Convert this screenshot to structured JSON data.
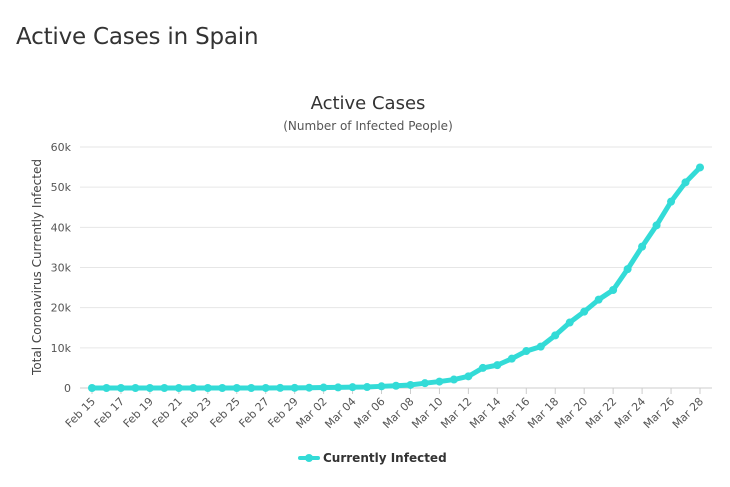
{
  "page": {
    "heading": "Active Cases in Spain"
  },
  "chart_data": {
    "type": "line",
    "title": "Active Cases",
    "subtitle": "(Number of Infected People)",
    "xlabel": "",
    "ylabel": "Total Coronavirus Currently Infected",
    "ylim": [
      0,
      60000
    ],
    "yticks": [
      0,
      10000,
      20000,
      30000,
      40000,
      50000,
      60000
    ],
    "ytick_labels": [
      "0",
      "10k",
      "20k",
      "30k",
      "40k",
      "50k",
      "60k"
    ],
    "xtick_labels": [
      "Feb 15",
      "Feb 17",
      "Feb 19",
      "Feb 21",
      "Feb 23",
      "Feb 25",
      "Feb 27",
      "Feb 29",
      "Mar 02",
      "Mar 04",
      "Mar 06",
      "Mar 08",
      "Mar 10",
      "Mar 12",
      "Mar 14",
      "Mar 16",
      "Mar 18",
      "Mar 20",
      "Mar 22",
      "Mar 24",
      "Mar 26",
      "Mar 28"
    ],
    "grid": true,
    "legend_position": "bottom-center",
    "series": [
      {
        "name": "Currently Infected",
        "color": "#33dbd7",
        "values": [
          2,
          2,
          2,
          2,
          2,
          2,
          2,
          2,
          2,
          2,
          2,
          2,
          13,
          32,
          44,
          71,
          110,
          150,
          210,
          240,
          420,
          560,
          760,
          1200,
          1600,
          2100,
          2900,
          5000,
          5700,
          7300,
          9200,
          10300,
          13100,
          16300,
          19000,
          22000,
          24400,
          29600,
          35200,
          40500,
          46400,
          51200,
          54900
        ]
      }
    ]
  }
}
